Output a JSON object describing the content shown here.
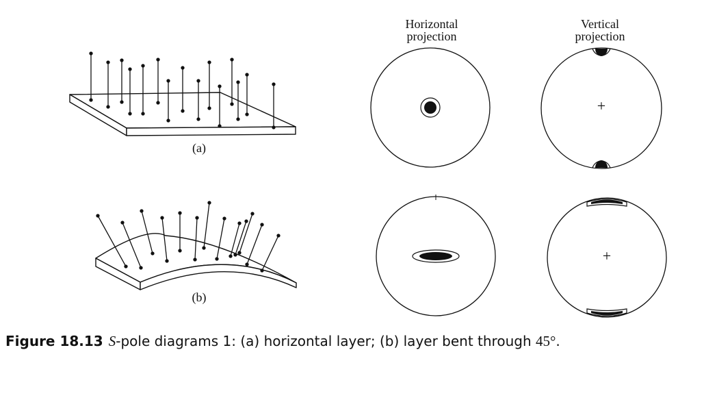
{
  "columns": {
    "horizontal": {
      "line1": "Horizontal",
      "line2": "projection"
    },
    "vertical": {
      "line1": "Vertical",
      "line2": "projection"
    }
  },
  "panels": {
    "a": "(a)",
    "b": "(b)"
  },
  "center_mark": "+",
  "caption": {
    "figure_number": "Figure 18.13",
    "s_letter": "S",
    "text": "-pole diagrams 1: (a) horizontal layer; (b) layer bent through ",
    "angle": "45°",
    "end": "."
  }
}
